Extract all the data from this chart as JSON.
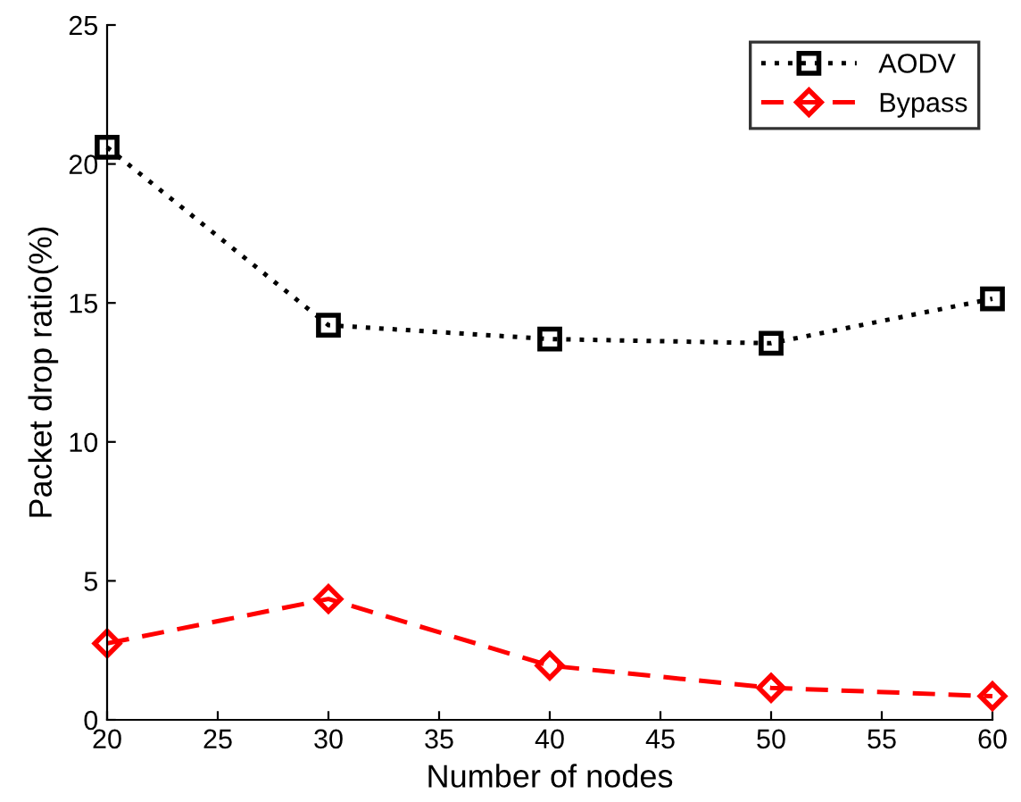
{
  "chart_data": {
    "type": "line",
    "xlabel": "Number of nodes",
    "ylabel": "Packet drop ratio(%)",
    "x": [
      20,
      30,
      40,
      50,
      60
    ],
    "series": [
      {
        "name": "AODV",
        "color": "#000000",
        "values": [
          20.6,
          14.2,
          13.7,
          13.55,
          15.15
        ],
        "marker": "square",
        "line_style": "dotted"
      },
      {
        "name": "Bypass",
        "color": "#ff0000",
        "values": [
          2.75,
          4.35,
          1.95,
          1.15,
          0.85
        ],
        "marker": "diamond",
        "line_style": "dashed"
      }
    ],
    "xlim": [
      20,
      60
    ],
    "xticks": [
      20,
      25,
      30,
      35,
      40,
      45,
      50,
      55,
      60
    ],
    "ylim": [
      0,
      25
    ],
    "yticks": [
      0,
      5,
      10,
      15,
      20,
      25
    ],
    "grid": false,
    "legend": "top right"
  }
}
